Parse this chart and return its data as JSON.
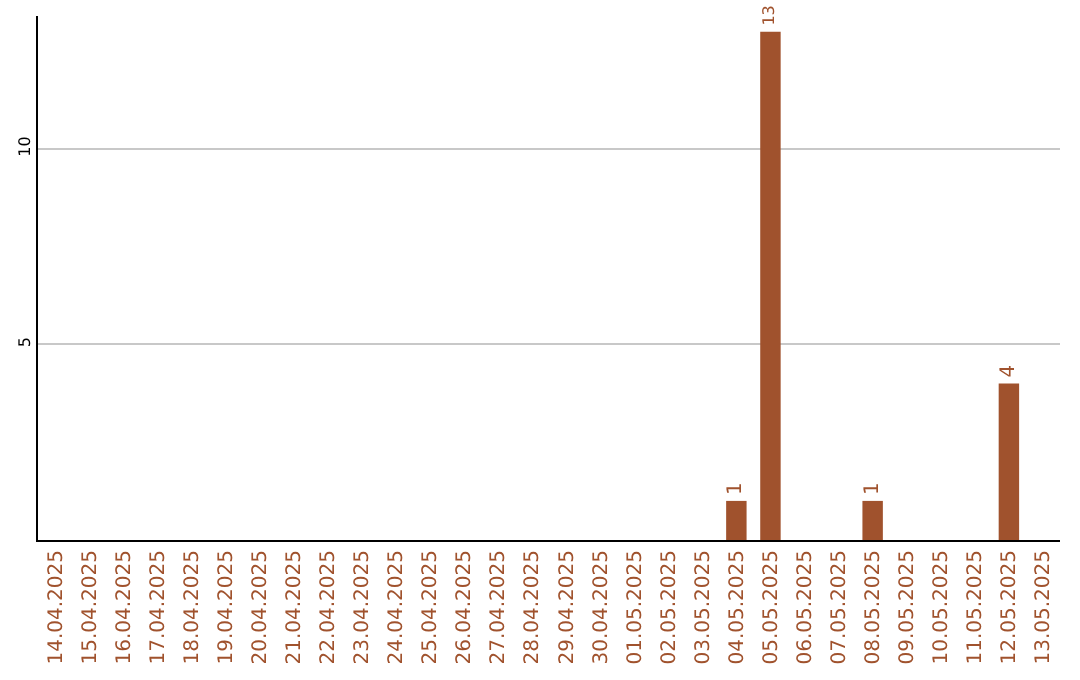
{
  "chart_data": {
    "type": "bar",
    "categories": [
      "14.04.2025",
      "15.04.2025",
      "16.04.2025",
      "17.04.2025",
      "18.04.2025",
      "19.04.2025",
      "20.04.2025",
      "21.04.2025",
      "22.04.2025",
      "23.04.2025",
      "24.04.2025",
      "25.04.2025",
      "26.04.2025",
      "27.04.2025",
      "28.04.2025",
      "29.04.2025",
      "30.04.2025",
      "01.05.2025",
      "02.05.2025",
      "03.05.2025",
      "04.05.2025",
      "05.05.2025",
      "06.05.2025",
      "07.05.2025",
      "08.05.2025",
      "09.05.2025",
      "10.05.2025",
      "11.05.2025",
      "12.05.2025",
      "13.05.2025"
    ],
    "values": [
      0,
      0,
      0,
      0,
      0,
      0,
      0,
      0,
      0,
      0,
      0,
      0,
      0,
      0,
      0,
      0,
      0,
      0,
      0,
      0,
      1,
      13,
      0,
      0,
      1,
      0,
      0,
      0,
      4,
      0
    ],
    "value_labels": [
      null,
      null,
      null,
      null,
      null,
      null,
      null,
      null,
      null,
      null,
      null,
      null,
      null,
      null,
      null,
      null,
      null,
      null,
      null,
      null,
      "1",
      "13",
      null,
      null,
      "1",
      null,
      null,
      null,
      "4",
      null
    ],
    "color": "#a0522d",
    "ylim": [
      0,
      13.4
    ],
    "yticks": [
      5,
      10
    ],
    "grid": "y"
  }
}
